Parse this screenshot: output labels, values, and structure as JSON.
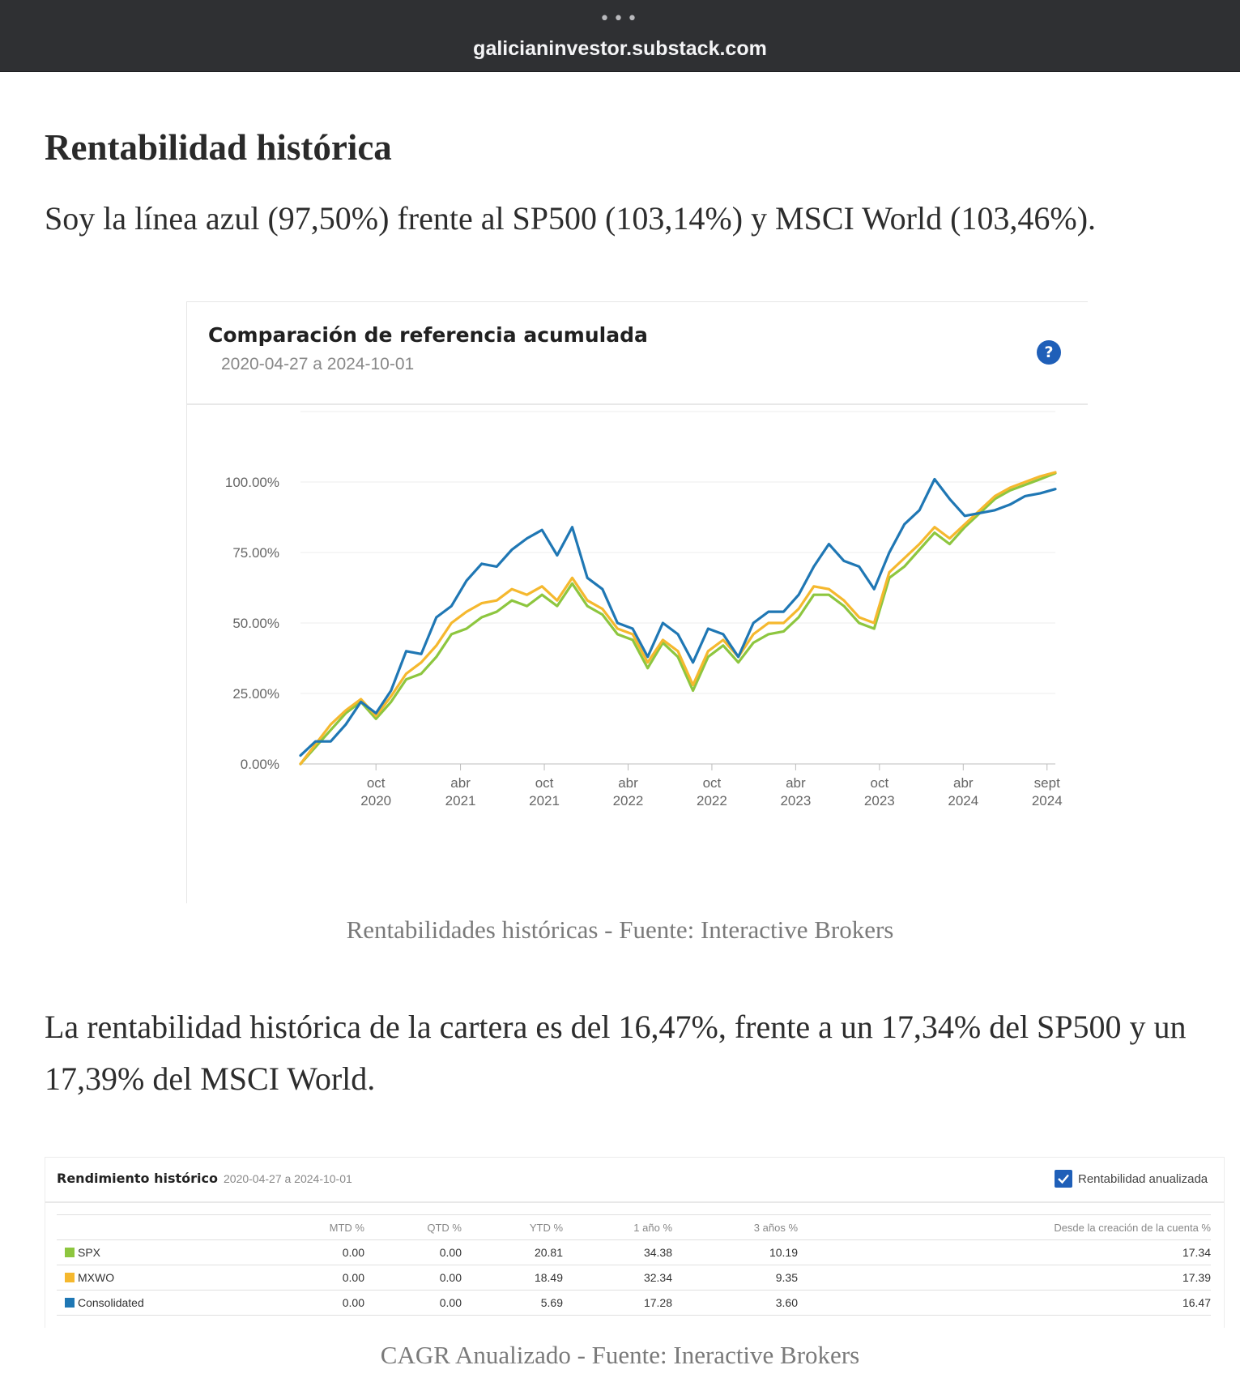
{
  "browser": {
    "dots": "•••",
    "url": "galicianinvestor.substack.com"
  },
  "article": {
    "heading": "Rentabilidad histórica",
    "paragraph1": "Soy la línea azul (97,50%) frente al SP500 (103,14%) y MSCI World (103,46%).",
    "caption1": "Rentabilidades históricas - Fuente: Interactive Brokers",
    "paragraph2": "La rentabilidad histórica de la cartera es del 16,47%, frente a un 17,34% del SP500 y un 17,39% del MSCI World.",
    "caption2": "CAGR Anualizado - Fuente: Ineractive Brokers"
  },
  "chart_widget": {
    "title": "Comparación de referencia acumulada",
    "range": "2020-04-27 a 2024-10-01",
    "help_icon": "?"
  },
  "chart_data": {
    "type": "line",
    "title": "Comparación de referencia acumulada",
    "subtitle": "2020-04-27 a 2024-10-01",
    "ylim": [
      0,
      125
    ],
    "grid": true,
    "y_ticks": [
      0,
      25,
      50,
      75,
      100
    ],
    "y_tick_labels": [
      "0.00%",
      "25.00%",
      "50.00%",
      "75.00%",
      "100.00%"
    ],
    "x_ticks": [
      {
        "t": 0.1,
        "month": "oct",
        "year": "2020"
      },
      {
        "t": 0.212,
        "month": "abr",
        "year": "2021"
      },
      {
        "t": 0.323,
        "month": "oct",
        "year": "2021"
      },
      {
        "t": 0.434,
        "month": "abr",
        "year": "2022"
      },
      {
        "t": 0.545,
        "month": "oct",
        "year": "2022"
      },
      {
        "t": 0.656,
        "month": "abr",
        "year": "2023"
      },
      {
        "t": 0.767,
        "month": "oct",
        "year": "2023"
      },
      {
        "t": 0.878,
        "month": "abr",
        "year": "2024"
      },
      {
        "t": 0.989,
        "month": "sept",
        "year": "2024"
      }
    ],
    "x_t": [
      0,
      0.02,
      0.04,
      0.06,
      0.08,
      0.1,
      0.12,
      0.14,
      0.16,
      0.18,
      0.2,
      0.22,
      0.24,
      0.26,
      0.28,
      0.3,
      0.32,
      0.34,
      0.36,
      0.38,
      0.4,
      0.42,
      0.44,
      0.46,
      0.48,
      0.5,
      0.52,
      0.54,
      0.56,
      0.58,
      0.6,
      0.62,
      0.64,
      0.66,
      0.68,
      0.7,
      0.72,
      0.74,
      0.76,
      0.78,
      0.8,
      0.82,
      0.84,
      0.86,
      0.88,
      0.9,
      0.92,
      0.94,
      0.96,
      0.98,
      1.0
    ],
    "series": [
      {
        "name": "Consolidated",
        "color": "#1f77b4",
        "values": [
          3,
          8,
          8,
          14,
          22,
          18,
          26,
          40,
          39,
          52,
          56,
          65,
          71,
          70,
          76,
          80,
          83,
          74,
          84,
          66,
          62,
          50,
          48,
          38,
          50,
          46,
          36,
          48,
          46,
          38,
          50,
          54,
          54,
          60,
          70,
          78,
          72,
          70,
          62,
          75,
          85,
          90,
          101,
          94,
          88,
          89,
          90,
          92,
          95,
          96,
          97.5
        ]
      },
      {
        "name": "MXWO",
        "color": "#f5b82e",
        "values": [
          0,
          7,
          14,
          19,
          23,
          17,
          24,
          32,
          36,
          42,
          50,
          54,
          57,
          58,
          62,
          60,
          63,
          58,
          66,
          58,
          55,
          48,
          46,
          36,
          44,
          40,
          28,
          40,
          44,
          38,
          46,
          50,
          50,
          55,
          63,
          62,
          58,
          52,
          50,
          68,
          73,
          78,
          84,
          80,
          85,
          90,
          95,
          98,
          100,
          102,
          103.46
        ]
      },
      {
        "name": "SPX",
        "color": "#8dc63f",
        "values": [
          0,
          6,
          12,
          18,
          22,
          16,
          22,
          30,
          32,
          38,
          46,
          48,
          52,
          54,
          58,
          56,
          60,
          56,
          64,
          56,
          53,
          46,
          44,
          34,
          43,
          38,
          26,
          38,
          42,
          36,
          43,
          46,
          47,
          52,
          60,
          60,
          56,
          50,
          48,
          66,
          70,
          76,
          82,
          78,
          84,
          89,
          94,
          97,
          99,
          101,
          103.14
        ]
      }
    ]
  },
  "performance": {
    "title": "Rendimiento histórico",
    "range": "2020-04-27 a 2024-10-01",
    "checkbox_label": "Rentabilidad anualizada",
    "checkbox_checked": true,
    "columns": [
      "",
      "MTD %",
      "QTD %",
      "YTD %",
      "1 año %",
      "3 años %",
      "Desde la creación de la cuenta %"
    ],
    "rows": [
      {
        "name": "SPX",
        "color": "#8dc63f",
        "values": [
          "0.00",
          "0.00",
          "20.81",
          "34.38",
          "10.19",
          "17.34"
        ]
      },
      {
        "name": "MXWO",
        "color": "#f5b82e",
        "values": [
          "0.00",
          "0.00",
          "18.49",
          "32.34",
          "9.35",
          "17.39"
        ]
      },
      {
        "name": "Consolidated",
        "color": "#1f77b4",
        "values": [
          "0.00",
          "0.00",
          "5.69",
          "17.28",
          "3.60",
          "16.47"
        ]
      }
    ]
  }
}
